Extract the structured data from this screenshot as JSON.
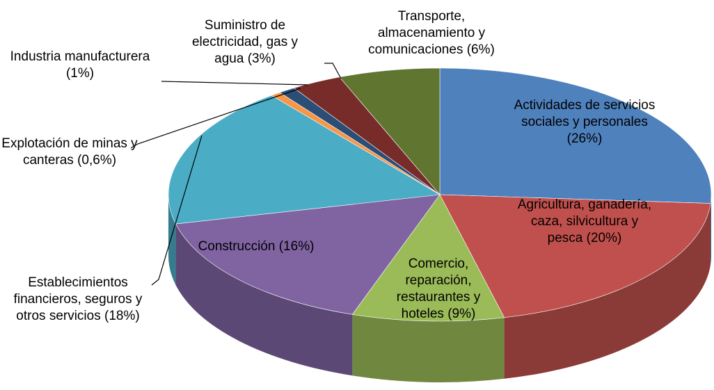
{
  "chart_data": {
    "type": "pie3d",
    "categories": [
      "Actividades de servicios sociales y personales",
      "Agricultura, ganadería, caza, silvicultura y pesca",
      "Comercio, reparación, restaurantes y hoteles",
      "Construcción",
      "Establecimientos financieros, seguros y otros servicios",
      "Explotación de minas y canteras",
      "Industria manufacturera",
      "Suministro de electricidad, gas y agua",
      "Transporte, almacenamiento y comunicaciones"
    ],
    "values": [
      26,
      20,
      9,
      16,
      18,
      0.6,
      1,
      3,
      6
    ],
    "value_labels": [
      "(26%)",
      "(20%)",
      "(9%)",
      "(16%)",
      "(18%)",
      "(0,6%)",
      "(1%)",
      "(3%)",
      "(6%)"
    ],
    "colors": [
      "#4f81bd",
      "#c0504d",
      "#9bbb59",
      "#8064a2",
      "#4bacc6",
      "#f79646",
      "#2c4d75",
      "#772c2a",
      "#5f7530"
    ]
  }
}
